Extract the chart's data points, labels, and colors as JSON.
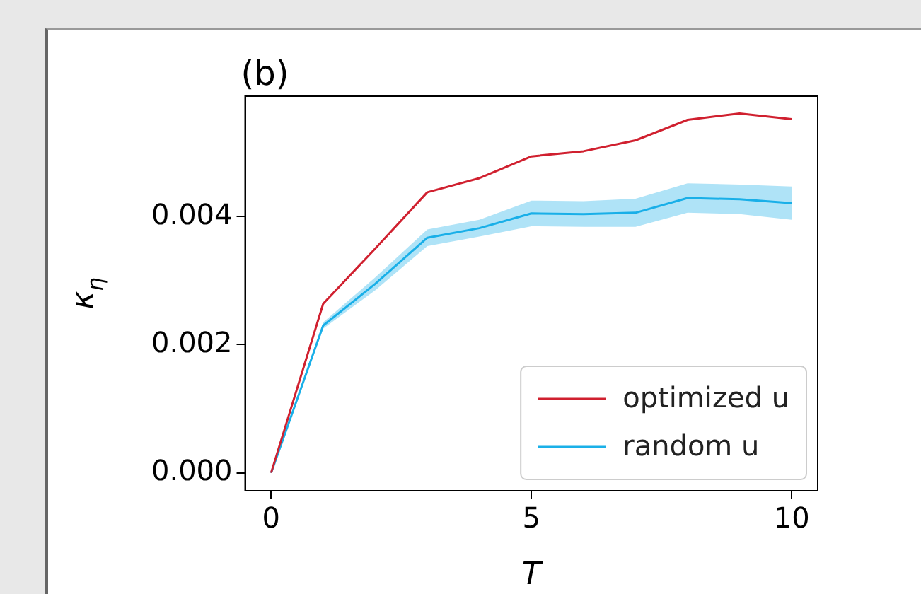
{
  "chart_data": {
    "type": "line",
    "title": "(b)",
    "xlabel": "T",
    "ylabel": "κ$_{η}$",
    "x": [
      0,
      1,
      2,
      3,
      4,
      5,
      6,
      7,
      8,
      9,
      10
    ],
    "xlim": [
      -0.5,
      10.5
    ],
    "xticks": [
      0,
      5,
      10
    ],
    "ylim": [
      -0.00028,
      0.00588
    ],
    "yticks": [
      {
        "value": 0,
        "label": "0.000"
      },
      0.002,
      0.004
    ],
    "grid": false,
    "legend": "bottom right",
    "marker": "none",
    "line_style": "solid",
    "series": [
      {
        "name": "optimized u",
        "color": "#d0202f",
        "values": [
          0,
          0.00264,
          0.0035,
          0.00438,
          0.0046,
          0.00494,
          0.00502,
          0.00519,
          0.00551,
          0.00561,
          0.00552
        ]
      },
      {
        "name": "random u",
        "color": "#1ab0e8",
        "values": [
          0,
          0.0023,
          0.00295,
          0.00367,
          0.00382,
          0.00405,
          0.00404,
          0.00406,
          0.00429,
          0.00427,
          0.00421
        ],
        "lower": [
          0,
          0.00225,
          0.00285,
          0.00354,
          0.00369,
          0.00385,
          0.00384,
          0.00384,
          0.00406,
          0.00404,
          0.00395
        ],
        "upper": [
          0,
          0.00235,
          0.00305,
          0.0038,
          0.00395,
          0.00425,
          0.00424,
          0.00428,
          0.00452,
          0.0045,
          0.00447
        ]
      }
    ]
  }
}
